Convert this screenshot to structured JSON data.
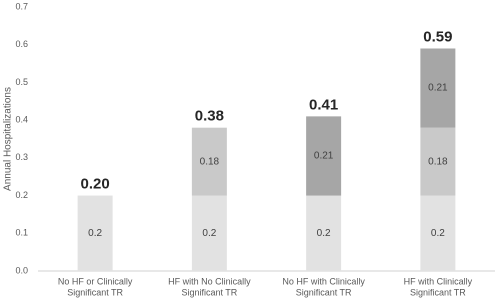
{
  "chart_data": {
    "type": "stacked-bar",
    "ylabel": "Annual Hospitalizations",
    "categories": [
      [
        "No HF or Clinically",
        "Significant TR"
      ],
      [
        "HF with No Clinically",
        "Significant TR"
      ],
      [
        "No HF with Clinically",
        "Significant TR"
      ],
      [
        "HF with Clinically",
        "Significant TR"
      ]
    ],
    "series": [
      {
        "color": "#e2e2e2",
        "values": [
          0.2,
          0.2,
          0.2,
          0.2
        ]
      },
      {
        "color": "#c9c9c9",
        "values": [
          null,
          0.18,
          null,
          0.18
        ]
      },
      {
        "color": "#a6a6a6",
        "values": [
          null,
          null,
          0.21,
          0.21
        ]
      }
    ],
    "totals": {
      "values": [
        0.2,
        0.38,
        0.41,
        0.59
      ],
      "value_labels": [
        "0.20",
        "0.38",
        "0.41",
        "0.59"
      ]
    },
    "ylim": [
      0,
      0.7
    ],
    "yticks": [
      {
        "value": 0,
        "label": "0.0"
      },
      0.1,
      0.2,
      0.3,
      0.4,
      0.5,
      0.6,
      0.7
    ]
  }
}
